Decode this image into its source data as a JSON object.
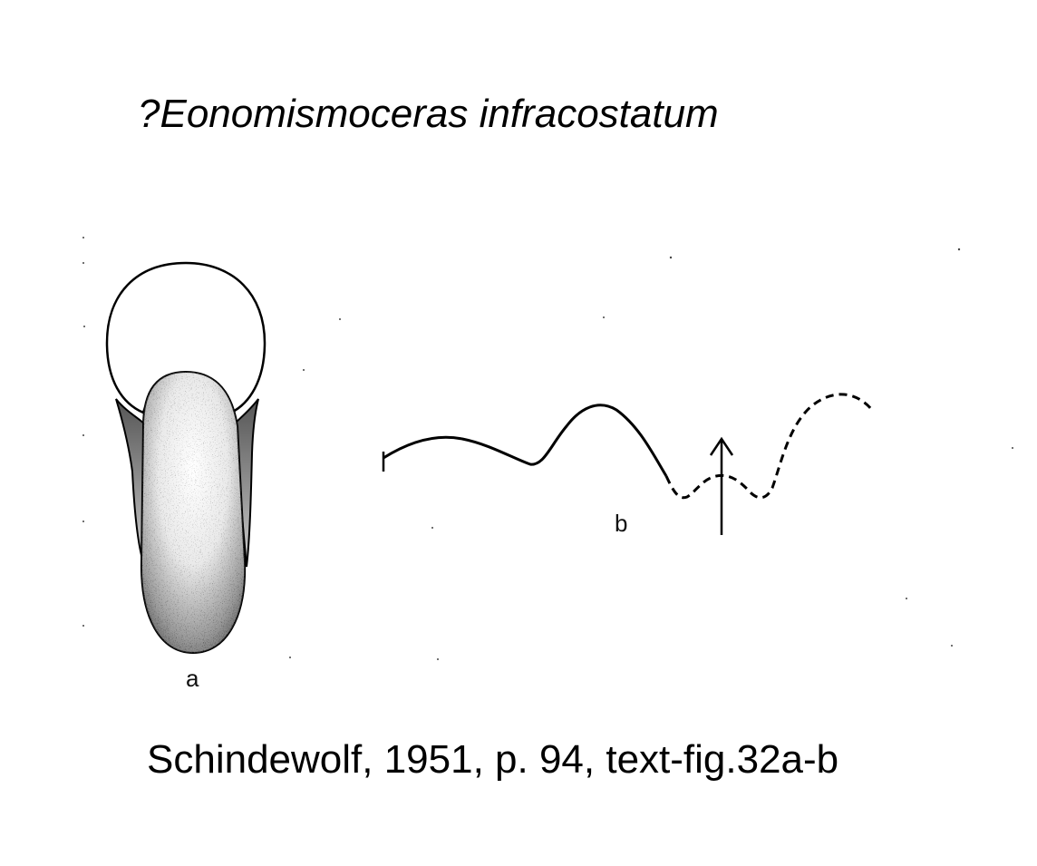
{
  "figure": {
    "title": "?Eonomismoceras infracostatum",
    "caption": "Schindewolf, 1951, p. 94, text-fig.32a-b",
    "label_a": "a",
    "label_b": "b"
  },
  "panels": [
    {
      "label": "a",
      "content": "cross-section of shell whorl"
    },
    {
      "label": "b",
      "content": "suture line with arrow"
    }
  ],
  "colors": {
    "ink": "#000000",
    "paper": "#ffffff"
  }
}
